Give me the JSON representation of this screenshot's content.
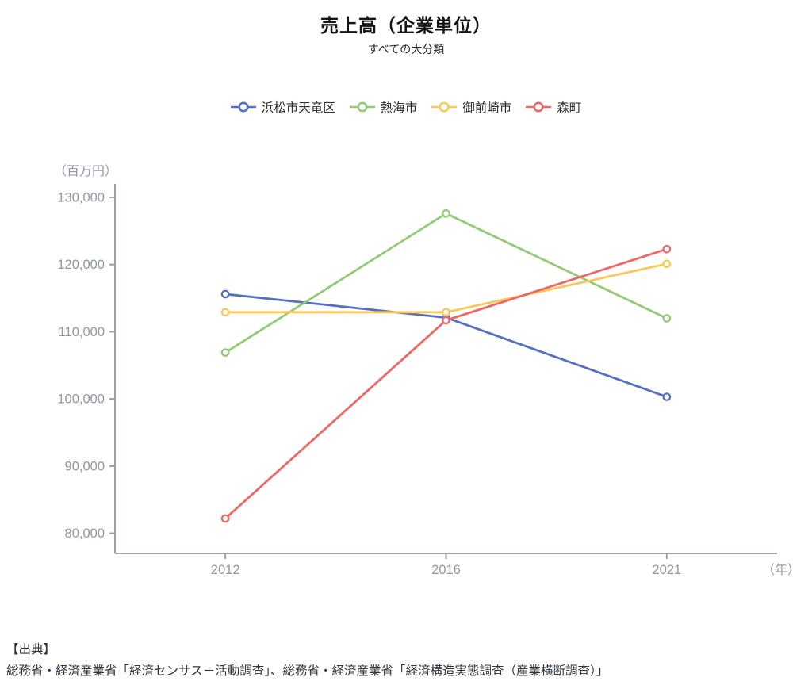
{
  "title": "売上高（企業単位）",
  "subtitle": "すべての大分類",
  "chart_data": {
    "type": "line",
    "x": [
      "2012",
      "2016",
      "2021"
    ],
    "series": [
      {
        "name": "浜松市天竜区",
        "color": "#5470C6",
        "values": [
          115600,
          112100,
          100300
        ]
      },
      {
        "name": "熱海市",
        "color": "#91CC75",
        "values": [
          106900,
          127600,
          112000
        ]
      },
      {
        "name": "御前崎市",
        "color": "#FAC858",
        "values": [
          112900,
          112900,
          120100
        ]
      },
      {
        "name": "森町",
        "color": "#EE6666",
        "values": [
          82200,
          111700,
          122300
        ]
      }
    ],
    "title": "売上高（企業単位）",
    "subtitle": "すべての大分類",
    "ylabel": "（百万円）",
    "xlabel": "（年）",
    "ylim": [
      77000,
      132000
    ],
    "yticks": [
      80000,
      90000,
      100000,
      110000,
      120000,
      130000
    ],
    "grid": false,
    "legend_position": "top",
    "marker": "hollow-circle"
  },
  "axis": {
    "unit_y": "（百万円）",
    "unit_x": "（年）",
    "tick_color": "#9298a3",
    "line_color": "#9aa0ab"
  },
  "source": {
    "heading": "【出典】",
    "text": "総務省・経済産業省「経済センサス－活動調査」、総務省・経済産業省「経済構造実態調査（産業横断調査）」"
  }
}
